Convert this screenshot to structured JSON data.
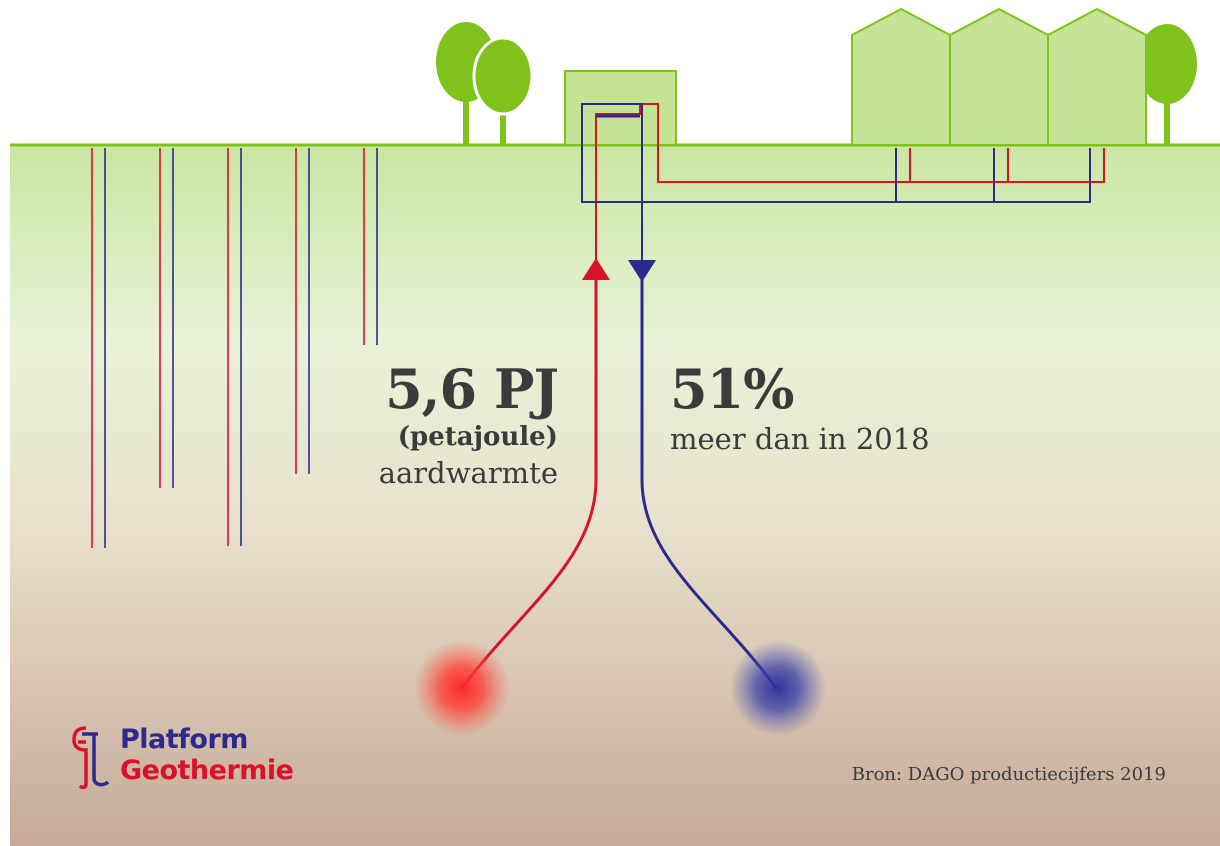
{
  "colors": {
    "hot": "#d9122a",
    "cold": "#2c2a8c",
    "grass": "#7fc21b",
    "building_fill": "#c5e394",
    "text": "#3b3b3b"
  },
  "stats": {
    "production_value": "5,6 PJ",
    "production_unit": "(petajoule)",
    "production_caption": "aardwarmte",
    "growth_value": "51%",
    "growth_caption": "meer dan in 2018"
  },
  "logo": {
    "line1": "Platform",
    "line2": "Geothermie"
  },
  "source": "Bron: DAGO productiecijfers 2019",
  "icons": [
    "tree-icon",
    "greenhouse-icon",
    "arrow-up-icon",
    "arrow-down-icon",
    "logo-mark-icon"
  ]
}
